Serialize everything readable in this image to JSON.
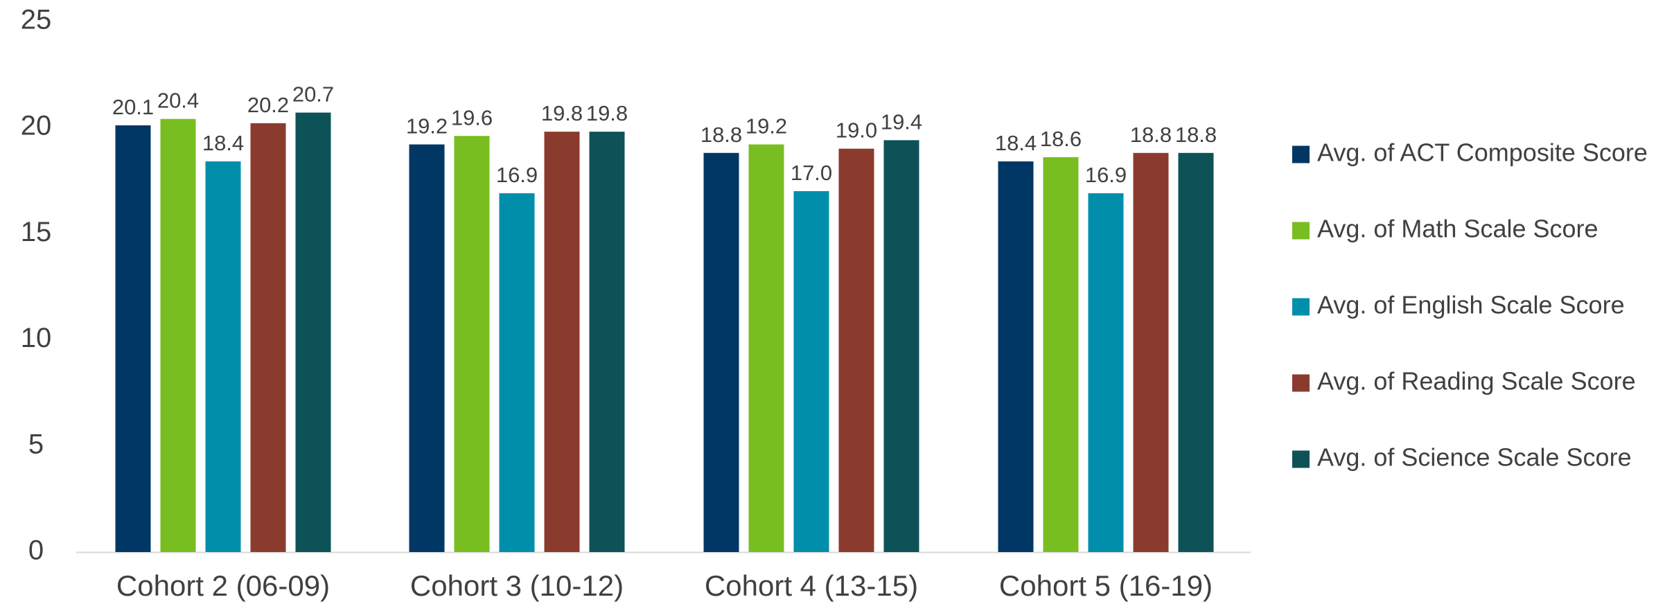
{
  "chart_data": {
    "type": "bar",
    "title": "",
    "xlabel": "",
    "ylabel": "",
    "ylim": [
      0,
      25
    ],
    "yticks": [
      0,
      5,
      10,
      15,
      20,
      25
    ],
    "grid": false,
    "legend_position": "right",
    "categories": [
      "Cohort 2 (06-09)",
      "Cohort 3 (10-12)",
      "Cohort 4 (13-15)",
      "Cohort 5 (16-19)"
    ],
    "series": [
      {
        "name": "Avg. of ACT Composite Score",
        "color": "#003764",
        "values": [
          20.1,
          19.2,
          18.8,
          18.4
        ],
        "labels": [
          "20.1",
          "19.2",
          "18.8",
          "18.4"
        ]
      },
      {
        "name": "Avg. of Math Scale Score",
        "color": "#78BE20",
        "values": [
          20.4,
          19.6,
          19.2,
          18.6
        ],
        "labels": [
          "20.4",
          "19.6",
          "19.2",
          "18.6"
        ]
      },
      {
        "name": "Avg. of English Scale Score",
        "color": "#008EAA",
        "values": [
          18.4,
          16.9,
          17.0,
          16.9
        ],
        "labels": [
          "18.4",
          "16.9",
          "17.0",
          "16.9"
        ]
      },
      {
        "name": "Avg. of Reading Scale Score",
        "color": "#8B3B2E",
        "values": [
          20.2,
          19.8,
          19.0,
          18.8
        ],
        "labels": [
          "20.2",
          "19.8",
          "19.0",
          "18.8"
        ]
      },
      {
        "name": "Avg. of Science Scale Score",
        "color": "#0D5257",
        "values": [
          20.7,
          19.8,
          19.4,
          18.8
        ],
        "labels": [
          "20.7",
          "19.8",
          "19.4",
          "18.8"
        ]
      }
    ]
  }
}
